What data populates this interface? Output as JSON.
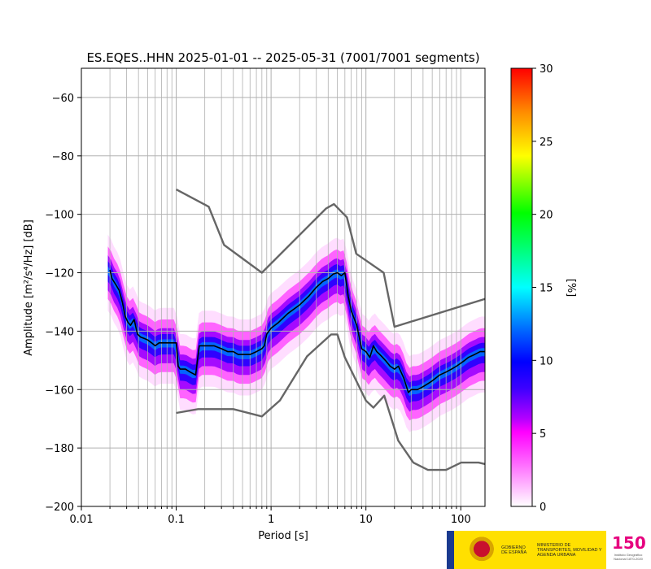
{
  "chart_data": {
    "type": "heatmap",
    "title": "ES.EQES..HHN   2025-01-01 -- 2025-05-31  (7001/7001 segments)",
    "xlabel": "Period [s]",
    "ylabel": "Amplitude [m²/s⁴/Hz] [dB]",
    "x_scale": "log",
    "xlim": [
      0.01,
      180
    ],
    "ylim": [
      -200,
      -50
    ],
    "x_ticks": [
      0.01,
      0.1,
      1,
      10,
      100
    ],
    "x_tick_labels": [
      "0.01",
      "0.1",
      "1",
      "10",
      "100"
    ],
    "y_ticks": [
      -200,
      -180,
      -160,
      -140,
      -120,
      -100,
      -80,
      -60
    ],
    "y_tick_labels": [
      "−200",
      "−180",
      "−160",
      "−140",
      "−120",
      "−100",
      "−80",
      "−60"
    ],
    "grid": true,
    "colorbar": {
      "label": "[%]",
      "range": [
        0,
        30
      ],
      "ticks": [
        0,
        5,
        10,
        15,
        20,
        25,
        30
      ],
      "tick_labels": [
        "0",
        "5",
        "10",
        "15",
        "20",
        "25",
        "30"
      ],
      "colors": [
        "#ffffff",
        "#ff00ff",
        "#0000ff",
        "#00ffff",
        "#00ff00",
        "#ffff00",
        "#ff0000"
      ]
    },
    "series": [
      {
        "kind": "mode",
        "color": "#000000",
        "x": [
          0.02,
          0.021,
          0.023,
          0.025,
          0.027,
          0.029,
          0.031,
          0.033,
          0.036,
          0.039,
          0.042,
          0.046,
          0.05,
          0.055,
          0.06,
          0.066,
          0.072,
          0.08,
          0.09,
          0.1,
          0.105,
          0.11,
          0.125,
          0.14,
          0.16,
          0.175,
          0.2,
          0.25,
          0.3,
          0.35,
          0.4,
          0.45,
          0.5,
          0.6,
          0.7,
          0.8,
          0.85,
          0.9,
          1.0,
          1.2,
          1.5,
          2.0,
          2.5,
          3.0,
          3.5,
          4.0,
          4.5,
          5.0,
          5.5,
          6.0,
          6.5,
          7.0,
          8.0,
          9.0,
          10,
          11,
          12,
          13,
          14,
          15,
          16,
          17,
          18,
          20,
          22,
          25,
          28,
          30,
          35,
          40,
          45,
          50,
          60,
          70,
          80,
          90,
          100,
          110,
          120,
          140,
          160,
          180
        ],
        "y": [
          -119,
          -122,
          -124,
          -126,
          -130,
          -135,
          -137,
          -138,
          -136,
          -141,
          -142,
          -142.5,
          -143,
          -144,
          -145,
          -144,
          -144,
          -144,
          -144,
          -144,
          -152,
          -153,
          -153,
          -154,
          -155,
          -145,
          -145,
          -145,
          -146,
          -147,
          -147,
          -148,
          -148,
          -148,
          -147,
          -146,
          -145,
          -141,
          -139,
          -137,
          -134,
          -131,
          -128,
          -125,
          -123,
          -122,
          -120.5,
          -120,
          -121,
          -120,
          -128,
          -133,
          -138,
          -146,
          -147,
          -149,
          -145,
          -147,
          -148,
          -149,
          -150,
          -151,
          -152,
          -153,
          -152,
          -156,
          -161,
          -160,
          -160,
          -159,
          -158,
          -157,
          -155,
          -154,
          -153,
          -152,
          -151,
          -150,
          -149,
          -148,
          -147,
          -147
        ]
      },
      {
        "kind": "noise-model-high",
        "color": "#666666",
        "x": [
          0.1,
          0.22,
          0.32,
          0.8,
          3.8,
          4.6,
          6.3,
          7.9,
          15.4,
          20,
          354.8
        ],
        "y": [
          -91.5,
          -97.4,
          -110.5,
          -120,
          -98,
          -96.5,
          -101,
          -113.5,
          -120,
          -138.5,
          -126
        ]
      },
      {
        "kind": "noise-model-low",
        "color": "#666666",
        "x": [
          0.1,
          0.17,
          0.4,
          0.8,
          1.24,
          2.4,
          4.3,
          5.0,
          6.0,
          10,
          12,
          15.6,
          21.9,
          31.6,
          45,
          70,
          101,
          154,
          180
        ],
        "y": [
          -168,
          -166.7,
          -166.7,
          -169.2,
          -163.7,
          -148.6,
          -141.1,
          -141.1,
          -149,
          -163.8,
          -166.2,
          -162.1,
          -177.5,
          -185,
          -187.5,
          -187.5,
          -185,
          -185,
          -185.5
        ]
      }
    ]
  },
  "logo": {
    "gov_text": "GOBIERNO DE ESPAÑA",
    "ministry_text": "MINISTERIO DE TRANSPORTES, MOVILIDAD Y AGENDA URBANA",
    "ign_text": "150",
    "ign_sub": "Instituto Geográfico Nacional 1870-2020"
  }
}
